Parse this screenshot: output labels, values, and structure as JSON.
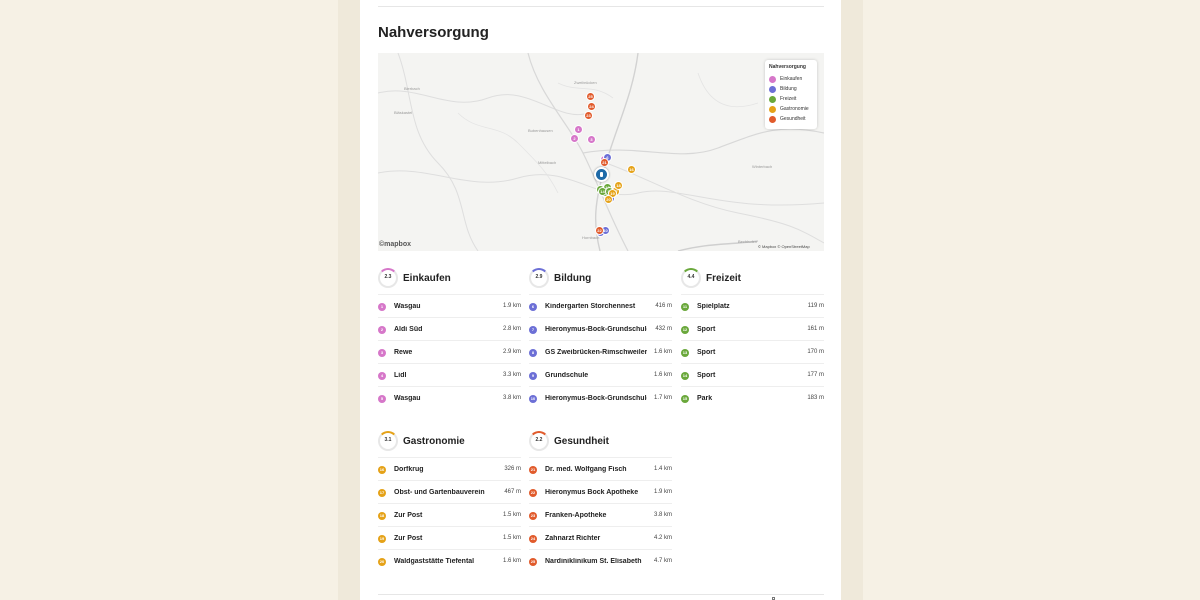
{
  "page": {
    "title": "Nahversorgung"
  },
  "map": {
    "labels": [
      "Bierbach",
      "Bläskastel",
      "Zweibrücken",
      "Bubenhausen",
      "Hornbach",
      "Mittelbach",
      "Bechhofen",
      "Winterbach"
    ],
    "attribution": "© Mapbox © OpenStreetMap",
    "logo": "©mapbox",
    "legend": {
      "title": "Nahversorgung",
      "items": [
        {
          "label": "Einkaufen",
          "color": "#d677c9"
        },
        {
          "label": "Bildung",
          "color": "#6c6fd6"
        },
        {
          "label": "Freizeit",
          "color": "#6aa83b"
        },
        {
          "label": "Gastronomie",
          "color": "#e5a218"
        },
        {
          "label": "Gesundheit",
          "color": "#e15b2c"
        }
      ]
    }
  },
  "sections": [
    {
      "key": "einkaufen",
      "title": "Einkaufen",
      "score": "2.3",
      "color": "#d677c9",
      "items": [
        {
          "num": "1",
          "name": "Wasgau",
          "dist": "1.9 km"
        },
        {
          "num": "2",
          "name": "Aldi Süd",
          "dist": "2.8 km"
        },
        {
          "num": "3",
          "name": "Rewe",
          "dist": "2.9 km"
        },
        {
          "num": "4",
          "name": "Lidl",
          "dist": "3.3 km"
        },
        {
          "num": "5",
          "name": "Wasgau",
          "dist": "3.8 km"
        }
      ]
    },
    {
      "key": "bildung",
      "title": "Bildung",
      "score": "2.9",
      "color": "#6c6fd6",
      "items": [
        {
          "num": "6",
          "name": "Kindergarten Storchennest",
          "dist": "416 m"
        },
        {
          "num": "7",
          "name": "Hieronymus-Bock-Grundschule",
          "dist": "432 m"
        },
        {
          "num": "8",
          "name": "GS Zweibrücken-Rimschweiler",
          "dist": "1.6 km"
        },
        {
          "num": "9",
          "name": "Grundschule",
          "dist": "1.6 km"
        },
        {
          "num": "10",
          "name": "Hieronymus-Bock-Grundschule",
          "dist": "1.7 km"
        }
      ]
    },
    {
      "key": "freizeit",
      "title": "Freizeit",
      "score": "4.4",
      "color": "#6aa83b",
      "items": [
        {
          "num": "11",
          "name": "Spielplatz",
          "dist": "119 m"
        },
        {
          "num": "12",
          "name": "Sport",
          "dist": "161 m"
        },
        {
          "num": "13",
          "name": "Sport",
          "dist": "170 m"
        },
        {
          "num": "14",
          "name": "Sport",
          "dist": "177 m"
        },
        {
          "num": "15",
          "name": "Park",
          "dist": "183 m"
        }
      ]
    },
    {
      "key": "gastronomie",
      "title": "Gastronomie",
      "score": "3.1",
      "color": "#e5a218",
      "items": [
        {
          "num": "16",
          "name": "Dorfkrug",
          "dist": "326 m"
        },
        {
          "num": "17",
          "name": "Obst- und Gartenbauverein",
          "dist": "467 m"
        },
        {
          "num": "18",
          "name": "Zur Post",
          "dist": "1.5 km"
        },
        {
          "num": "19",
          "name": "Zur Post",
          "dist": "1.5 km"
        },
        {
          "num": "20",
          "name": "Waldgaststätte Tiefental",
          "dist": "1.6 km"
        }
      ]
    },
    {
      "key": "gesundheit",
      "title": "Gesundheit",
      "score": "2.2",
      "color": "#e15b2c",
      "items": [
        {
          "num": "21",
          "name": "Dr. med. Wolfgang Fisch",
          "dist": "1.4 km"
        },
        {
          "num": "22",
          "name": "Hieronymus Bock Apotheke",
          "dist": "1.9 km"
        },
        {
          "num": "23",
          "name": "Franken-Apotheke",
          "dist": "3.8 km"
        },
        {
          "num": "24",
          "name": "Zahnarzt Richter",
          "dist": "4.2 km"
        },
        {
          "num": "25",
          "name": "Nardiniklinikum St. Elisabeth",
          "dist": "4.7 km"
        }
      ]
    }
  ]
}
